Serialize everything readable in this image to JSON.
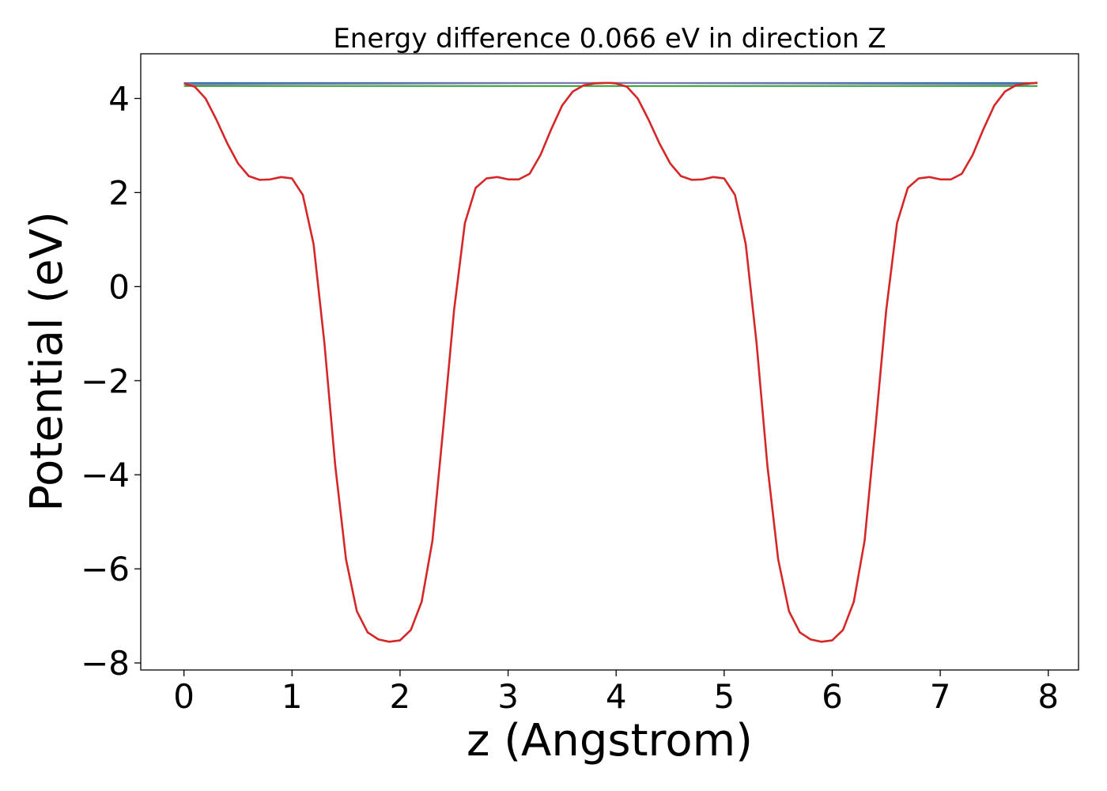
{
  "chart_data": {
    "type": "line",
    "title": "Energy difference 0.066 eV in direction Z",
    "xlabel": "z (Angstrom)",
    "ylabel": "Potential (eV)",
    "xlim": [
      -0.4,
      8.28
    ],
    "ylim": [
      -8.15,
      4.95
    ],
    "xticks": [
      0,
      1,
      2,
      3,
      4,
      5,
      6,
      7,
      8
    ],
    "xtick_labels": [
      "0",
      "1",
      "2",
      "3",
      "4",
      "5",
      "6",
      "7",
      "8"
    ],
    "yticks": [
      -8,
      -6,
      -4,
      -2,
      0,
      2,
      4
    ],
    "ytick_labels": [
      "−8",
      "−6",
      "−4",
      "−2",
      "0",
      "2",
      "4"
    ],
    "grid": false,
    "series": [
      {
        "color": "#d62728",
        "x": [
          0.0,
          0.1,
          0.2,
          0.3,
          0.4,
          0.5,
          0.6,
          0.7,
          0.8,
          0.9,
          1.0,
          1.1,
          1.2,
          1.3,
          1.4,
          1.5,
          1.6,
          1.7,
          1.8,
          1.9,
          2.0,
          2.1,
          2.2,
          2.3,
          2.4,
          2.5,
          2.6,
          2.7,
          2.8,
          2.9,
          3.0,
          3.1,
          3.2,
          3.3,
          3.4,
          3.5,
          3.6,
          3.7,
          3.8,
          3.9,
          3.95,
          4.0,
          4.1,
          4.2,
          4.3,
          4.4,
          4.5,
          4.6,
          4.7,
          4.8,
          4.9,
          5.0,
          5.1,
          5.2,
          5.3,
          5.4,
          5.5,
          5.6,
          5.7,
          5.8,
          5.9,
          6.0,
          6.1,
          6.2,
          6.3,
          6.4,
          6.5,
          6.6,
          6.7,
          6.8,
          6.9,
          7.0,
          7.1,
          7.2,
          7.3,
          7.4,
          7.5,
          7.6,
          7.7,
          7.8,
          7.9
        ],
        "y": [
          4.32,
          4.25,
          4.0,
          3.55,
          3.05,
          2.62,
          2.35,
          2.27,
          2.28,
          2.33,
          2.3,
          1.95,
          0.9,
          -1.2,
          -3.8,
          -5.8,
          -6.9,
          -7.35,
          -7.5,
          -7.55,
          -7.52,
          -7.3,
          -6.7,
          -5.4,
          -3.0,
          -0.5,
          1.35,
          2.1,
          2.3,
          2.33,
          2.28,
          2.28,
          2.4,
          2.8,
          3.35,
          3.85,
          4.15,
          4.28,
          4.32,
          4.33,
          4.33,
          4.32,
          4.25,
          4.0,
          3.55,
          3.05,
          2.62,
          2.35,
          2.27,
          2.28,
          2.33,
          2.3,
          1.95,
          0.9,
          -1.2,
          -3.8,
          -5.8,
          -6.9,
          -7.35,
          -7.5,
          -7.55,
          -7.52,
          -7.3,
          -6.7,
          -5.4,
          -3.0,
          -0.5,
          1.35,
          2.1,
          2.3,
          2.33,
          2.28,
          2.28,
          2.4,
          2.8,
          3.35,
          3.85,
          4.15,
          4.28,
          4.32,
          4.33
        ]
      },
      {
        "color": "#1f77b4",
        "x": [
          0.0,
          7.9
        ],
        "y": [
          4.33,
          4.33
        ]
      },
      {
        "color": "#2ca02c",
        "x": [
          0.0,
          7.9
        ],
        "y": [
          4.264,
          4.264
        ]
      },
      {
        "color": "#8172b2",
        "x": [
          0.0,
          0.1,
          3.85,
          4.05,
          7.8,
          7.9
        ],
        "y": [
          4.33,
          4.3,
          4.33,
          4.33,
          4.3,
          4.34
        ]
      }
    ]
  }
}
